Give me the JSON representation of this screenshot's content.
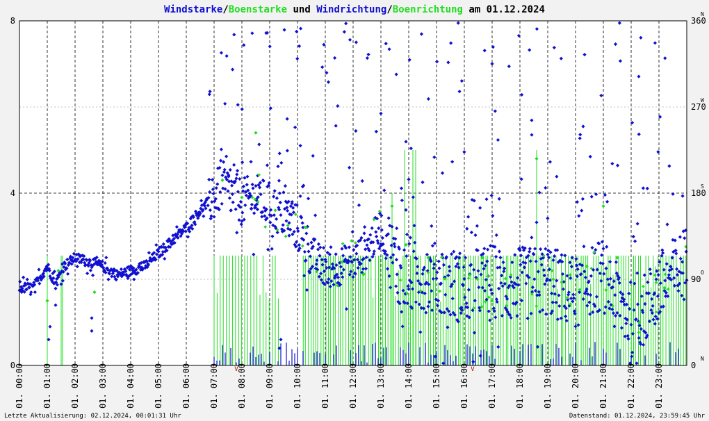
{
  "title": {
    "part1": "Windstarke",
    "sep1": "/",
    "part2": "Boenstarke",
    "part3": " und ",
    "part4": "Windrichtung",
    "sep2": "/",
    "part5": "Boenrichtung",
    "part6": " am 01.12.2024"
  },
  "footer": {
    "left": "Letzte Aktualisierung: 02.12.2024, 00:01:31 Uhr",
    "right": "Datenstand: 01.12.2024, 23:59:45 Uhr"
  },
  "colors": {
    "wind": "#1010d0",
    "gust": "#22dd22",
    "direction_marker": "#cc0000",
    "background": "#ffffff",
    "frame": "#f2f2f2"
  },
  "chart_data": {
    "type": "scatter",
    "x_unit": "hour of day",
    "xlim": [
      0,
      24
    ],
    "ylim_left": [
      0,
      8
    ],
    "ylim_right": [
      0,
      360
    ],
    "y_ticks_left": [
      "0",
      "4",
      "8"
    ],
    "y_ticks_right": [
      "0",
      "90",
      "180",
      "270",
      "360"
    ],
    "compass_labels": [
      {
        "label": "N",
        "deg": 0
      },
      {
        "label": "O",
        "deg": 90
      },
      {
        "label": "S",
        "deg": 180
      },
      {
        "label": "W",
        "deg": 270
      },
      {
        "label": "N",
        "deg": 360
      }
    ],
    "x_tick_labels": [
      "01. 00:00",
      "01. 01:00",
      "01. 02:00",
      "01. 03:00",
      "01. 04:00",
      "01. 05:00",
      "01. 06:00",
      "01. 07:00",
      "01. 08:00",
      "01. 09:00",
      "01. 10:00",
      "01. 11:00",
      "01. 12:00",
      "01. 13:00",
      "01. 14:00",
      "01. 15:00",
      "01. 16:00",
      "01. 17:00",
      "01. 18:00",
      "01. 19:00",
      "01. 20:00",
      "01. 21:00",
      "01. 22:00",
      "01. 23:00"
    ],
    "grid": true,
    "wind_speed_profile": [
      [
        0.0,
        1.8
      ],
      [
        0.5,
        1.8
      ],
      [
        1.0,
        2.3
      ],
      [
        1.3,
        1.9
      ],
      [
        1.6,
        2.3
      ],
      [
        2.0,
        2.5
      ],
      [
        2.5,
        2.4
      ],
      [
        3.0,
        2.3
      ],
      [
        3.5,
        2.1
      ],
      [
        4.0,
        2.2
      ],
      [
        4.5,
        2.3
      ],
      [
        5.0,
        2.6
      ],
      [
        5.5,
        2.9
      ],
      [
        6.0,
        3.2
      ],
      [
        6.5,
        3.6
      ],
      [
        7.0,
        3.9
      ],
      [
        7.3,
        4.2
      ],
      [
        7.6,
        4.0
      ],
      [
        8.0,
        3.8
      ],
      [
        8.5,
        3.9
      ],
      [
        9.0,
        3.7
      ],
      [
        9.5,
        3.5
      ],
      [
        10.0,
        3.2
      ],
      [
        10.5,
        2.6
      ],
      [
        11.0,
        2.2
      ],
      [
        11.5,
        2.3
      ],
      [
        12.0,
        2.4
      ],
      [
        12.5,
        2.7
      ],
      [
        13.0,
        3.2
      ],
      [
        13.5,
        2.4
      ],
      [
        14.0,
        2.0
      ],
      [
        14.5,
        2.1
      ],
      [
        15.0,
        2.0
      ],
      [
        15.5,
        1.9
      ],
      [
        16.0,
        1.8
      ],
      [
        16.5,
        1.9
      ],
      [
        17.0,
        2.0
      ],
      [
        17.5,
        1.8
      ],
      [
        18.0,
        1.9
      ],
      [
        18.5,
        1.9
      ],
      [
        19.0,
        2.0
      ],
      [
        19.5,
        1.8
      ],
      [
        20.0,
        1.7
      ],
      [
        20.5,
        2.0
      ],
      [
        21.0,
        2.1
      ],
      [
        21.5,
        1.5
      ],
      [
        22.0,
        1.1
      ],
      [
        22.5,
        1.3
      ],
      [
        23.0,
        1.8
      ],
      [
        23.5,
        2.1
      ],
      [
        24.0,
        2.4
      ]
    ],
    "gust_markers": [
      [
        1.0,
        1.5
      ],
      [
        1.4,
        2.2
      ],
      [
        2.7,
        1.7
      ],
      [
        7.3,
        4.3
      ],
      [
        8.0,
        3.9
      ],
      [
        8.5,
        5.4
      ],
      [
        9.2,
        3.6
      ],
      [
        10.3,
        3.2
      ],
      [
        11.6,
        2.4
      ],
      [
        13.4,
        3.7
      ],
      [
        13.9,
        2.8
      ],
      [
        14.7,
        2.5
      ],
      [
        16.2,
        2.1
      ],
      [
        17.0,
        1.5
      ],
      [
        18.6,
        4.8
      ],
      [
        19.2,
        2.0
      ],
      [
        20.4,
        2.3
      ],
      [
        21.0,
        3.7
      ],
      [
        21.5,
        2.5
      ],
      [
        22.3,
        1.0
      ],
      [
        23.2,
        1.8
      ]
    ],
    "direction_marker_hours": [
      7.8,
      16.3
    ]
  }
}
